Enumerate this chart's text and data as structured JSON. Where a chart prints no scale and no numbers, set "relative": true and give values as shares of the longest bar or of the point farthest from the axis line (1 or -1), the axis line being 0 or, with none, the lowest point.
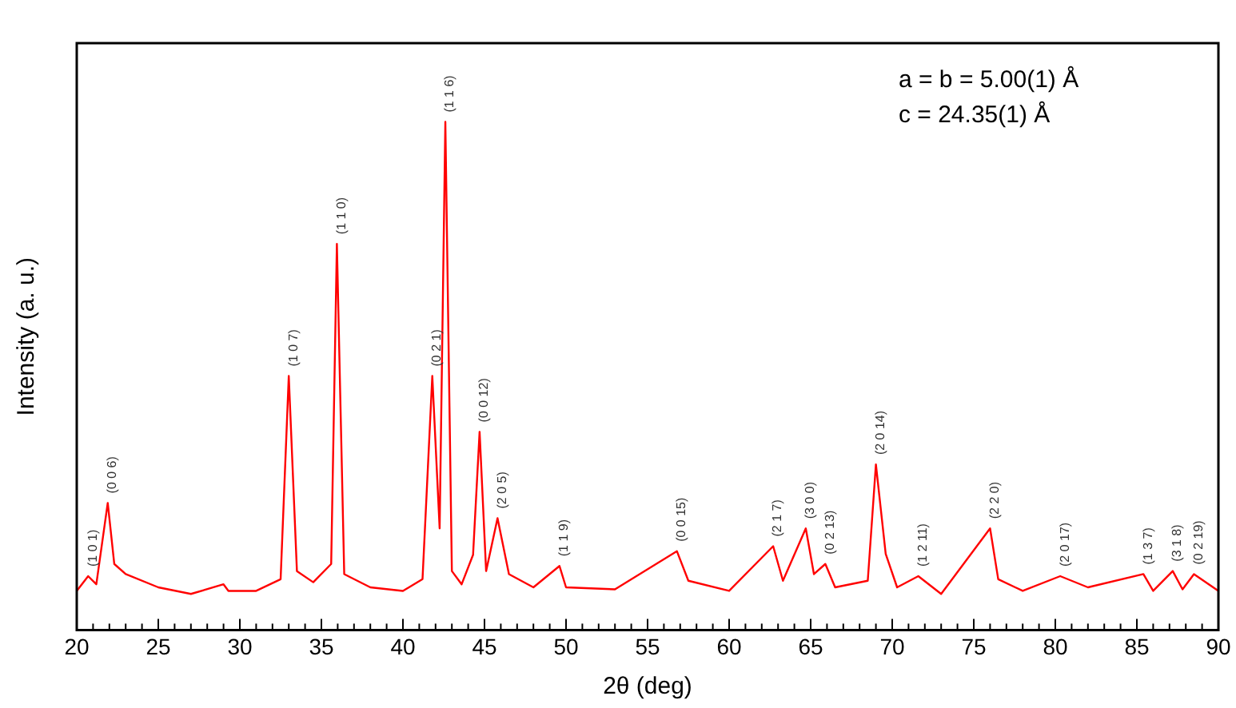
{
  "chart_data": {
    "type": "line",
    "relative": true,
    "xlabel": "2θ (deg)",
    "ylabel": "Intensity (a. u.)",
    "xlim": [
      20,
      90
    ],
    "xticks": [
      20,
      {
        "value": 21,
        "label": null
      },
      {
        "value": 22,
        "label": null
      },
      {
        "value": 23,
        "label": null
      },
      {
        "value": 24,
        "label": null
      },
      25,
      {
        "value": 26,
        "label": null
      },
      {
        "value": 27,
        "label": null
      },
      {
        "value": 28,
        "label": null
      },
      {
        "value": 29,
        "label": null
      },
      30,
      {
        "value": 31,
        "label": null
      },
      {
        "value": 32,
        "label": null
      },
      {
        "value": 33,
        "label": null
      },
      {
        "value": 34,
        "label": null
      },
      35,
      {
        "value": 36,
        "label": null
      },
      {
        "value": 37,
        "label": null
      },
      {
        "value": 38,
        "label": null
      },
      {
        "value": 39,
        "label": null
      },
      40,
      {
        "value": 41,
        "label": null
      },
      {
        "value": 42,
        "label": null
      },
      {
        "value": 43,
        "label": null
      },
      {
        "value": 44,
        "label": null
      },
      45,
      {
        "value": 46,
        "label": null
      },
      {
        "value": 47,
        "label": null
      },
      {
        "value": 48,
        "label": null
      },
      {
        "value": 49,
        "label": null
      },
      50,
      {
        "value": 51,
        "label": null
      },
      {
        "value": 52,
        "label": null
      },
      {
        "value": 53,
        "label": null
      },
      {
        "value": 54,
        "label": null
      },
      55,
      {
        "value": 56,
        "label": null
      },
      {
        "value": 57,
        "label": null
      },
      {
        "value": 58,
        "label": null
      },
      {
        "value": 59,
        "label": null
      },
      60,
      {
        "value": 61,
        "label": null
      },
      {
        "value": 62,
        "label": null
      },
      {
        "value": 63,
        "label": null
      },
      {
        "value": 64,
        "label": null
      },
      65,
      {
        "value": 66,
        "label": null
      },
      {
        "value": 67,
        "label": null
      },
      {
        "value": 68,
        "label": null
      },
      {
        "value": 69,
        "label": null
      },
      70,
      {
        "value": 71,
        "label": null
      },
      {
        "value": 72,
        "label": null
      },
      {
        "value": 73,
        "label": null
      },
      {
        "value": 74,
        "label": null
      },
      75,
      {
        "value": 76,
        "label": null
      },
      {
        "value": 77,
        "label": null
      },
      {
        "value": 78,
        "label": null
      },
      {
        "value": 79,
        "label": null
      },
      80,
      {
        "value": 81,
        "label": null
      },
      {
        "value": 82,
        "label": null
      },
      {
        "value": 83,
        "label": null
      },
      {
        "value": 84,
        "label": null
      },
      85,
      {
        "value": 86,
        "label": null
      },
      {
        "value": 87,
        "label": null
      },
      {
        "value": 88,
        "label": null
      },
      {
        "value": 89,
        "label": null
      },
      90
    ],
    "grid": false,
    "legend": false,
    "marker": "none",
    "series": [
      {
        "color": "#ff0000",
        "x": [
          20,
          20.7,
          21.2,
          21.9,
          22.3,
          23,
          25,
          27,
          29,
          29.3,
          31,
          32.5,
          33,
          33.5,
          34.5,
          35.6,
          35.95,
          36.4,
          38,
          40,
          41.2,
          41.8,
          42.25,
          42.6,
          43,
          43.6,
          44.3,
          44.7,
          45.1,
          45.8,
          46.5,
          48,
          49.6,
          50,
          53,
          56.8,
          57.5,
          60,
          62.7,
          63.3,
          64.7,
          65.2,
          65.9,
          66.5,
          68.5,
          69,
          69.6,
          70.3,
          71.6,
          73,
          76,
          76.5,
          78,
          80.3,
          82,
          85.4,
          86,
          87.2,
          87.8,
          88.5,
          90
        ],
        "values": [
          0.077,
          0.106,
          0.09,
          0.25,
          0.13,
          0.11,
          0.084,
          0.071,
          0.09,
          0.077,
          0.077,
          0.1,
          0.5,
          0.116,
          0.094,
          0.13,
          0.76,
          0.11,
          0.084,
          0.077,
          0.1,
          0.5,
          0.2,
          1.0,
          0.116,
          0.09,
          0.148,
          0.39,
          0.116,
          0.22,
          0.11,
          0.084,
          0.126,
          0.084,
          0.08,
          0.155,
          0.097,
          0.077,
          0.165,
          0.097,
          0.2,
          0.11,
          0.13,
          0.084,
          0.097,
          0.326,
          0.15,
          0.084,
          0.106,
          0.071,
          0.2,
          0.1,
          0.077,
          0.106,
          0.084,
          0.11,
          0.077,
          0.116,
          0.08,
          0.11,
          0.077
        ]
      }
    ],
    "annotations": [
      "a = b = 5.00(1) Å",
      "c = 24.35(1) Å",
      {
        "text": "(1 0 1)",
        "x": 20.7,
        "y": 0.106
      },
      {
        "text": "(0 0 6)",
        "x": 21.9,
        "y": 0.25
      },
      {
        "text": "(1 0 7)",
        "x": 33,
        "y": 0.5
      },
      {
        "text": "(1 1 0)",
        "x": 35.95,
        "y": 0.76
      },
      {
        "text": "(0 2 1)",
        "x": 41.8,
        "y": 0.5
      },
      {
        "text": "(1 1 6)",
        "x": 42.6,
        "y": 1.0
      },
      {
        "text": "(0 0 12)",
        "x": 44.7,
        "y": 0.39
      },
      {
        "text": "(2 0 5)",
        "x": 45.8,
        "y": 0.22
      },
      {
        "text": "(1 1 9)",
        "x": 49.6,
        "y": 0.126
      },
      {
        "text": "(0 0 15)",
        "x": 56.8,
        "y": 0.155
      },
      {
        "text": "(2 1 7)",
        "x": 62.7,
        "y": 0.165
      },
      {
        "text": "(3 0 0)",
        "x": 64.7,
        "y": 0.2
      },
      {
        "text": "(0 2 13)",
        "x": 65.9,
        "y": 0.13
      },
      {
        "text": "(2 0 14)",
        "x": 69,
        "y": 0.326
      },
      {
        "text": "(1 2 11)",
        "x": 71.6,
        "y": 0.106
      },
      {
        "text": "(2 2 0)",
        "x": 76,
        "y": 0.2
      },
      {
        "text": "(2 0 17)",
        "x": 80.3,
        "y": 0.106
      },
      {
        "text": "(1 3 7)",
        "x": 85.4,
        "y": 0.11
      },
      {
        "text": "(3 1 8)",
        "x": 87.2,
        "y": 0.116
      },
      {
        "text": "(0 2 19)",
        "x": 88.5,
        "y": 0.11
      }
    ]
  }
}
